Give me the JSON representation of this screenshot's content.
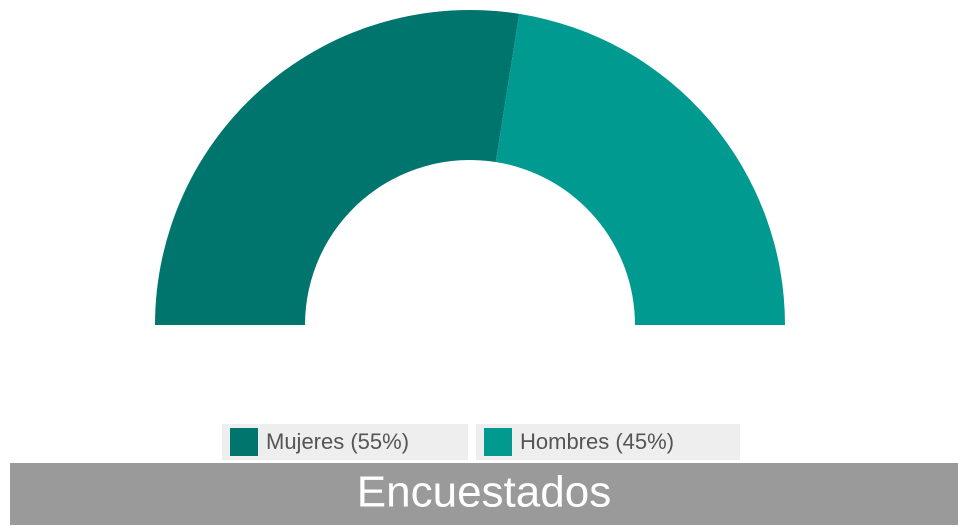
{
  "chart_data": {
    "type": "pie",
    "style": "half-donut",
    "title": "Encuestados",
    "categories": [
      "Mujeres (55%)",
      "Hombres (45%)"
    ],
    "values": [
      55,
      45
    ],
    "colors": [
      "#00756e",
      "#009a91"
    ]
  }
}
